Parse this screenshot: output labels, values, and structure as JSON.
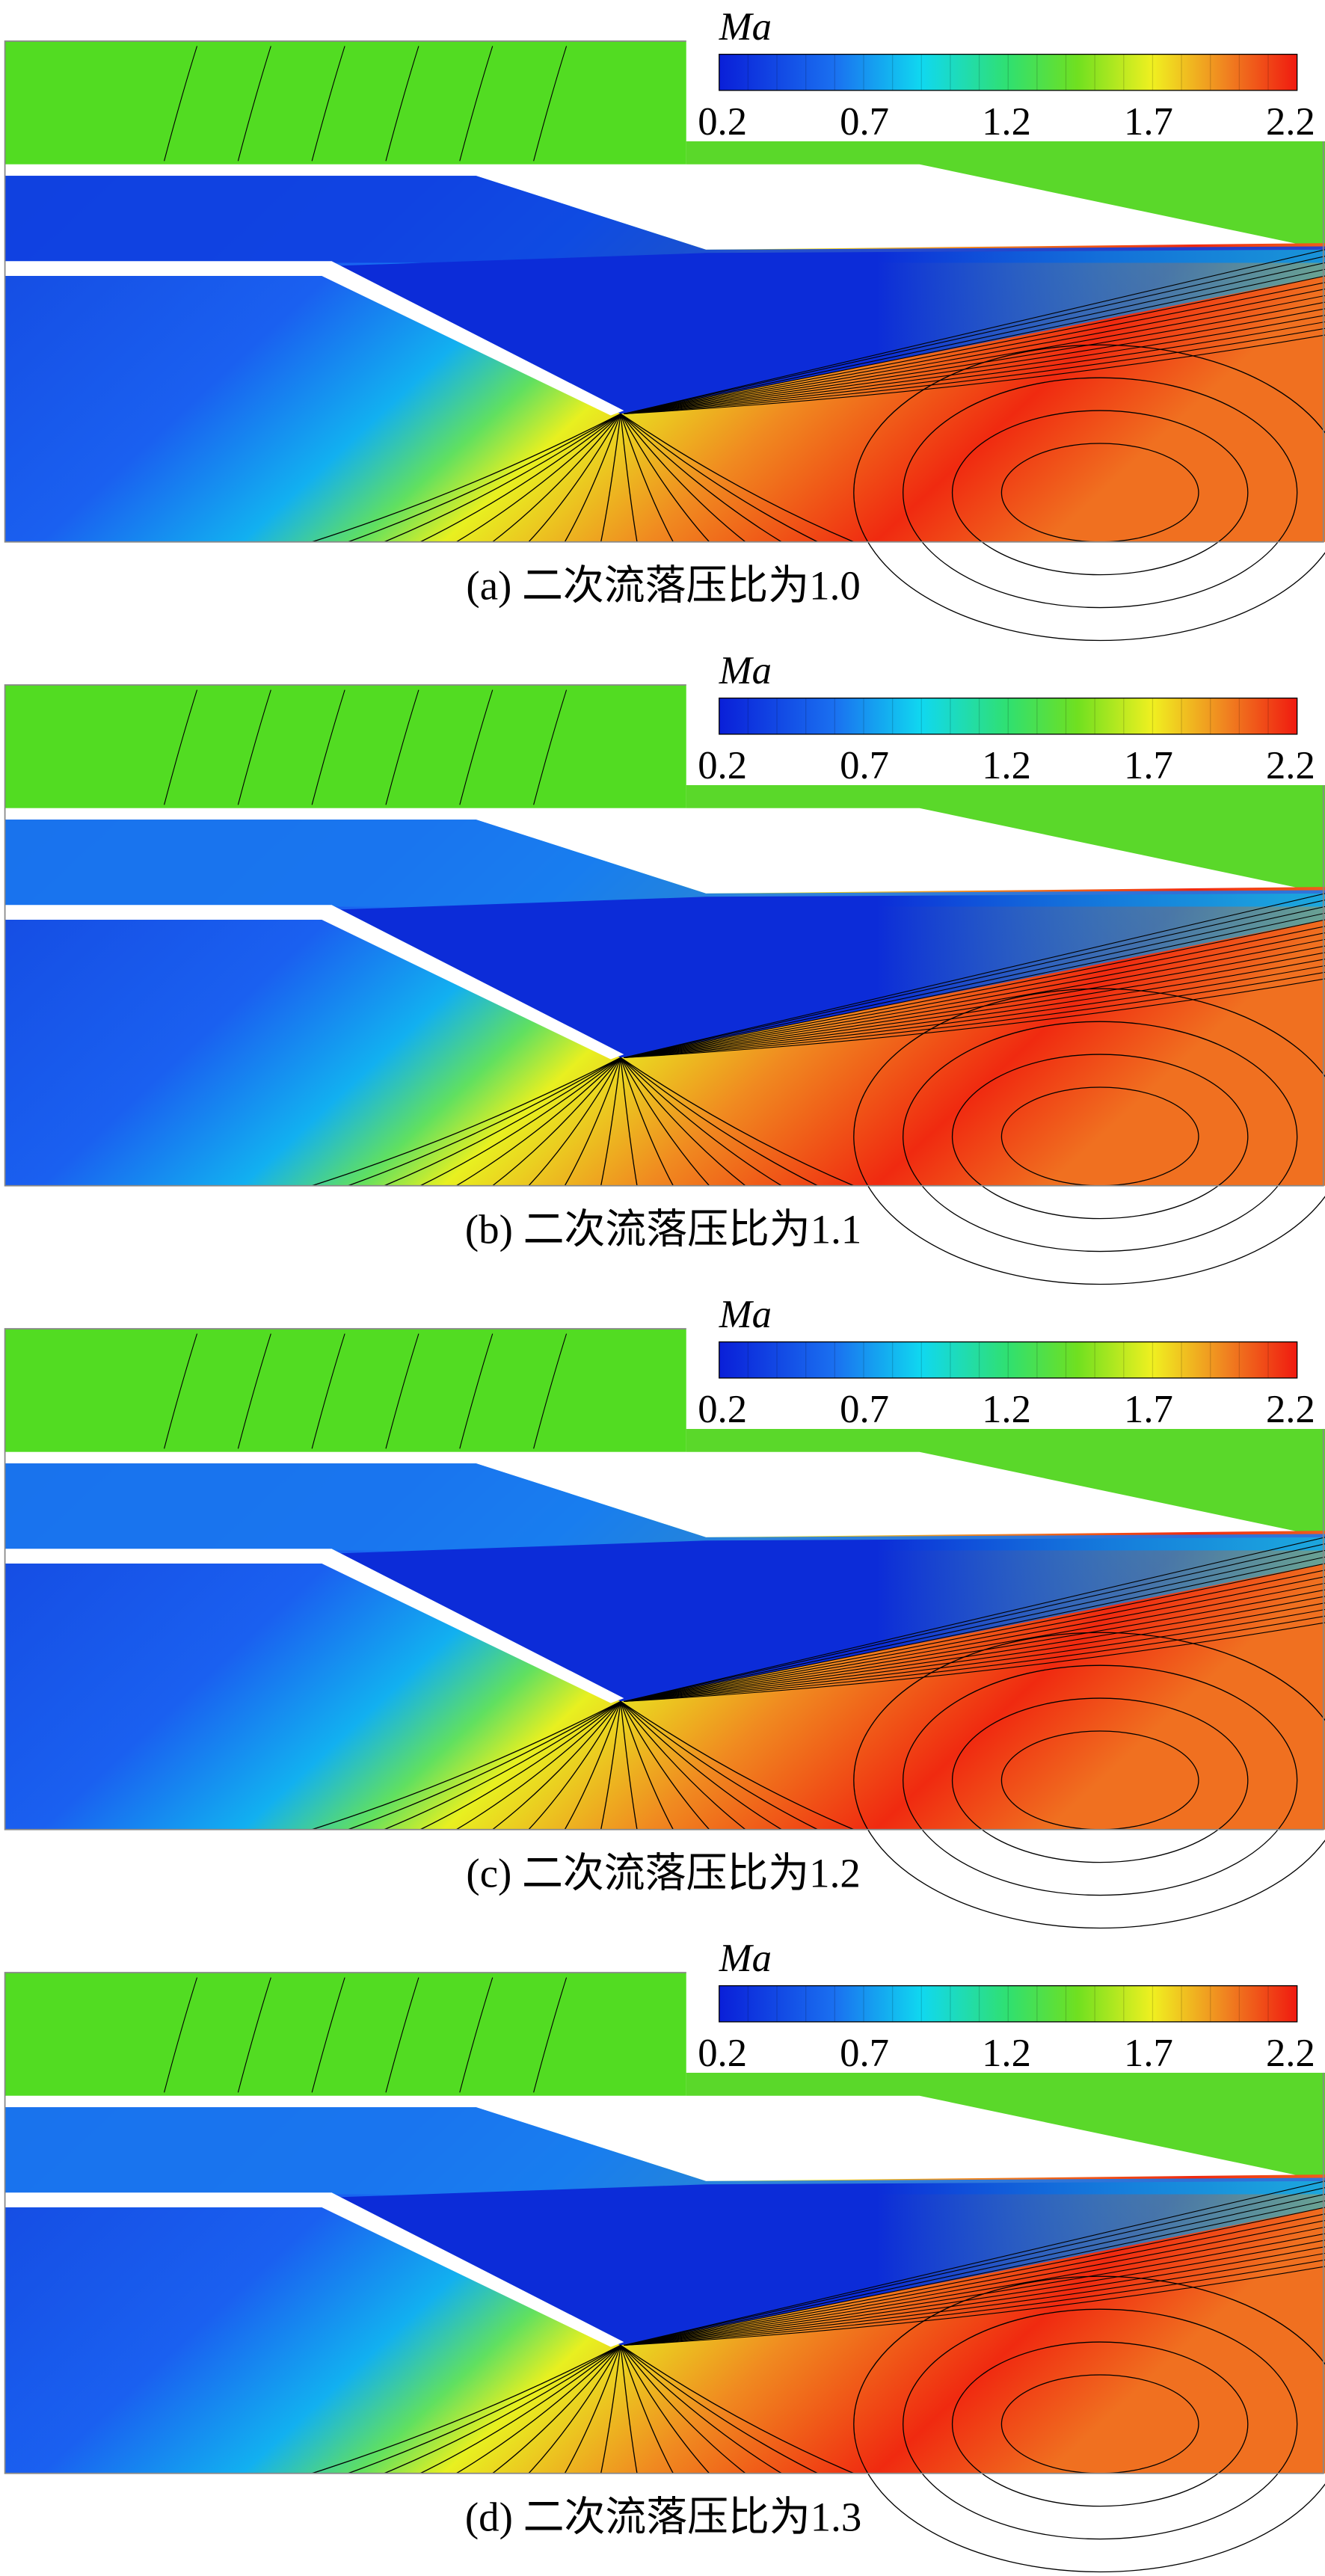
{
  "panels": [
    {
      "colorbar": {
        "label": "Ma",
        "ticks": [
          0.2,
          0.7,
          1.2,
          1.7,
          2.2
        ]
      },
      "caption": "(a) 二次流落压比为1.0"
    },
    {
      "colorbar": {
        "label": "Ma",
        "ticks": [
          0.2,
          0.7,
          1.2,
          1.7,
          2.2
        ]
      },
      "caption": "(b) 二次流落压比为1.1"
    },
    {
      "colorbar": {
        "label": "Ma",
        "ticks": [
          0.2,
          0.7,
          1.2,
          1.7,
          2.2
        ]
      },
      "caption": "(c) 二次流落压比为1.2"
    },
    {
      "colorbar": {
        "label": "Ma",
        "ticks": [
          0.2,
          0.7,
          1.2,
          1.7,
          2.2
        ]
      },
      "caption": "(d) 二次流落压比为1.3"
    }
  ]
}
